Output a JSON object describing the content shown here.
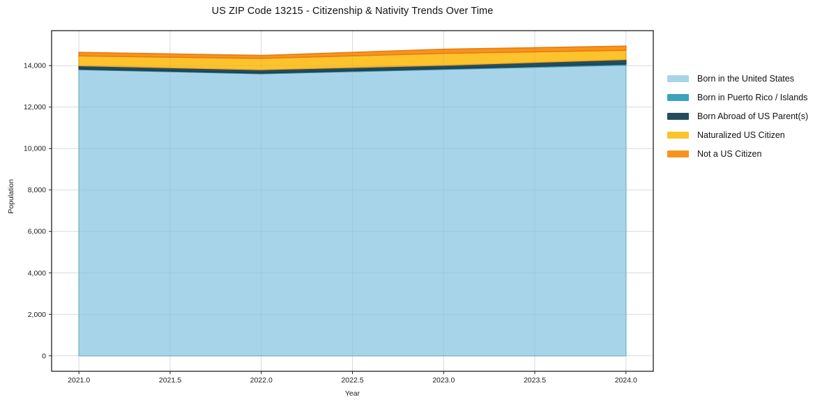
{
  "title": "US ZIP Code 13215 - Citizenship & Nativity Trends Over Time",
  "chart_data": {
    "type": "area",
    "stacked": true,
    "title": "US ZIP Code 13215 - Citizenship & Nativity Trends Over Time",
    "xlabel": "Year",
    "ylabel": "Population",
    "x": [
      2021,
      2022,
      2023,
      2024
    ],
    "series": [
      {
        "name": "Born in the United States",
        "color": "#A8D4E9",
        "edge": "#85C1DC",
        "values": [
          13810,
          13610,
          13820,
          14030
        ]
      },
      {
        "name": "Born in Puerto Rico / Islands",
        "color": "#3AA3BE",
        "edge": "#2F8FA9",
        "values": [
          30,
          30,
          40,
          50
        ]
      },
      {
        "name": "Born Abroad of US Parent(s)",
        "color": "#264B5D",
        "edge": "#1E3E4E",
        "values": [
          160,
          170,
          160,
          220
        ]
      },
      {
        "name": "Naturalized US Citizen",
        "color": "#FDC32D",
        "edge": "#F2AE1F",
        "values": [
          470,
          540,
          570,
          440
        ]
      },
      {
        "name": "Not a US Citizen",
        "color": "#F7941E",
        "edge": "#E87C10",
        "values": [
          170,
          140,
          200,
          200
        ]
      }
    ],
    "x_ticks": [
      "2021.0",
      "2021.5",
      "2022.0",
      "2022.5",
      "2023.0",
      "2023.5",
      "2024.0"
    ],
    "x_tick_values": [
      2021,
      2021.5,
      2022,
      2022.5,
      2023,
      2023.5,
      2024
    ],
    "y_ticks": [
      "0",
      "2,000",
      "4,000",
      "6,000",
      "8,000",
      "10,000",
      "12,000",
      "14,000"
    ],
    "y_tick_values": [
      0,
      2000,
      4000,
      6000,
      8000,
      10000,
      12000,
      14000
    ],
    "ylim": [
      0,
      14000
    ],
    "grid": true,
    "grid_color": "#e7e9ea",
    "axis_color": "#1f1f1f",
    "legend_position": "right"
  }
}
